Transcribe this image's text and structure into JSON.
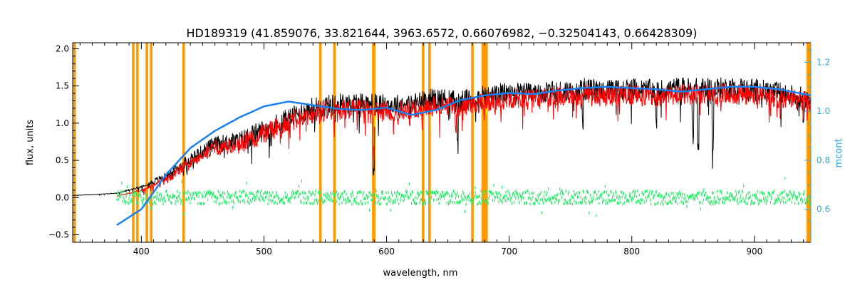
{
  "chart_data": {
    "type": "line",
    "title": "HD189319    (41.859076, 33.821644, 3963.6572, 0.66076982, −0.32504143, 0.66428309)",
    "xlabel": "wavelength, nm",
    "ylabel": "flux, units",
    "y2label": "mcont",
    "xlim": [
      344,
      946
    ],
    "ylim": [
      -0.6,
      2.08
    ],
    "y2lim": [
      0.465,
      1.28
    ],
    "xticks": [
      "400",
      "500",
      "600",
      "700",
      "800",
      "900"
    ],
    "yticks": [
      "−0.5",
      "0.0",
      "0.5",
      "1.0",
      "1.5",
      "2.0"
    ],
    "y2ticks": [
      "0.6",
      "0.8",
      "1.0",
      "1.2"
    ],
    "x_tick_values": [
      400,
      500,
      600,
      700,
      800,
      900
    ],
    "y_tick_values": [
      -0.5,
      0.0,
      0.5,
      1.0,
      1.5,
      2.0
    ],
    "y2_tick_values": [
      0.6,
      0.8,
      1.0,
      1.2
    ],
    "masked_lines_nm": [
      345.5,
      393.4,
      396.8,
      404.5,
      408.0,
      434.5,
      546.0,
      557.5,
      589.2,
      589.9,
      629.8,
      635.0,
      670.0,
      678.5,
      680.0,
      681.5,
      943.5,
      944.8
    ],
    "series": [
      {
        "role": "observed",
        "color": "#000000",
        "x": [
          344,
          360,
          380,
          400,
          420,
          440,
          460,
          480,
          500,
          520,
          540,
          560,
          580,
          600,
          620,
          640,
          660,
          680,
          700,
          720,
          740,
          760,
          780,
          800,
          820,
          840,
          860,
          880,
          900,
          920,
          946
        ],
        "values": [
          0.03,
          0.04,
          0.06,
          0.15,
          0.3,
          0.55,
          0.75,
          0.8,
          0.95,
          1.1,
          1.25,
          1.3,
          1.32,
          1.28,
          1.3,
          1.38,
          1.33,
          1.4,
          1.45,
          1.43,
          1.47,
          1.5,
          1.48,
          1.5,
          1.48,
          1.52,
          1.5,
          1.52,
          1.5,
          1.45,
          1.37
        ]
      },
      {
        "role": "model",
        "color": "#ff0000",
        "x": [
          380,
          400,
          420,
          440,
          460,
          480,
          500,
          520,
          540,
          560,
          580,
          600,
          620,
          640,
          660,
          680,
          700,
          720,
          740,
          760,
          780,
          800,
          820,
          840,
          860,
          880,
          900,
          920,
          946
        ],
        "values": [
          0.02,
          0.1,
          0.25,
          0.5,
          0.7,
          0.75,
          0.9,
          1.05,
          1.18,
          1.22,
          1.25,
          1.2,
          1.22,
          1.28,
          1.25,
          1.33,
          1.37,
          1.35,
          1.4,
          1.42,
          1.4,
          1.42,
          1.4,
          1.43,
          1.42,
          1.44,
          1.42,
          1.38,
          1.33
        ]
      },
      {
        "role": "residual",
        "color": "#22ee66",
        "x": [
          380,
          946
        ],
        "values": [
          0.0,
          0.0
        ]
      },
      {
        "role": "mcont",
        "axis": "right",
        "color": "#1a7ff0",
        "x": [
          380,
          400,
          420,
          440,
          460,
          480,
          500,
          520,
          540,
          560,
          580,
          600,
          620,
          640,
          660,
          680,
          700,
          720,
          740,
          760,
          780,
          800,
          820,
          840,
          860,
          880,
          900,
          920,
          946
        ],
        "values": [
          0.535,
          0.6,
          0.74,
          0.85,
          0.92,
          0.975,
          1.02,
          1.04,
          1.025,
          1.01,
          1.005,
          1.015,
          0.985,
          1.005,
          1.045,
          1.065,
          1.075,
          1.07,
          1.085,
          1.095,
          1.1,
          1.095,
          1.09,
          1.08,
          1.09,
          1.1,
          1.1,
          1.09,
          1.065
        ]
      }
    ]
  }
}
